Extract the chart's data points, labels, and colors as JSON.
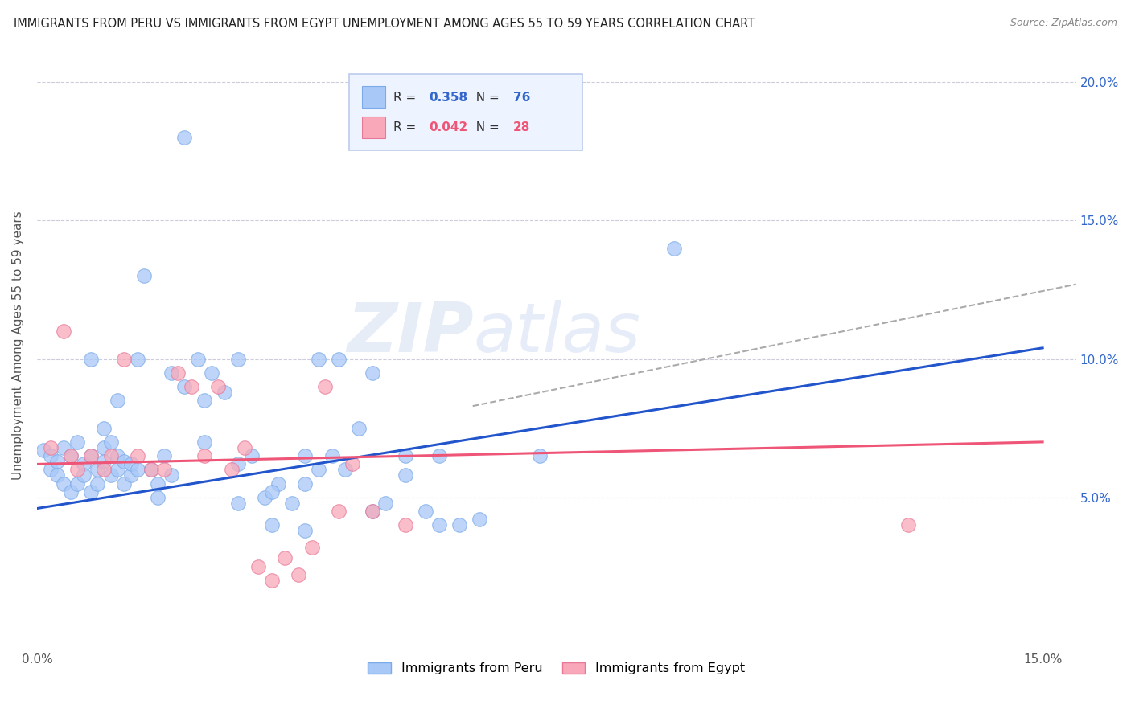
{
  "title": "IMMIGRANTS FROM PERU VS IMMIGRANTS FROM EGYPT UNEMPLOYMENT AMONG AGES 55 TO 59 YEARS CORRELATION CHART",
  "source": "Source: ZipAtlas.com",
  "ylabel": "Unemployment Among Ages 55 to 59 years",
  "peru_R": 0.358,
  "peru_N": 76,
  "egypt_R": 0.042,
  "egypt_N": 28,
  "peru_color": "#a8c8f8",
  "peru_edge_color": "#7aaae8",
  "egypt_color": "#f8a8b8",
  "egypt_edge_color": "#e87898",
  "peru_line_color": "#2255cc",
  "egypt_line_color": "#ee5577",
  "trend_line_color": "#aaaaaa",
  "background_color": "#ffffff",
  "grid_color": "#ccccdd",
  "xlim": [
    0.0,
    0.155
  ],
  "ylim": [
    -0.005,
    0.215
  ],
  "yticks": [
    0.05,
    0.1,
    0.15,
    0.2
  ],
  "ytick_labels": [
    "5.0%",
    "10.0%",
    "15.0%",
    "20.0%"
  ],
  "peru_trend_y_start": 0.046,
  "peru_trend_y_end": 0.104,
  "egypt_trend_y_start": 0.062,
  "egypt_trend_y_end": 0.07,
  "dashed_trend_x_start": 0.065,
  "dashed_trend_x_end": 0.155,
  "dashed_trend_y_start": 0.083,
  "dashed_trend_y_end": 0.127,
  "peru_x": [
    0.001,
    0.002,
    0.002,
    0.003,
    0.003,
    0.004,
    0.004,
    0.005,
    0.005,
    0.006,
    0.006,
    0.007,
    0.007,
    0.008,
    0.008,
    0.009,
    0.009,
    0.01,
    0.01,
    0.011,
    0.011,
    0.012,
    0.012,
    0.013,
    0.013,
    0.014,
    0.014,
    0.015,
    0.016,
    0.017,
    0.018,
    0.019,
    0.02,
    0.022,
    0.024,
    0.026,
    0.028,
    0.03,
    0.032,
    0.034,
    0.036,
    0.038,
    0.04,
    0.042,
    0.044,
    0.046,
    0.048,
    0.05,
    0.052,
    0.055,
    0.058,
    0.06,
    0.063,
    0.066,
    0.02,
    0.025,
    0.03,
    0.035,
    0.04,
    0.045,
    0.05,
    0.055,
    0.06,
    0.025,
    0.03,
    0.035,
    0.04,
    0.008,
    0.01,
    0.012,
    0.015,
    0.018,
    0.022,
    0.042,
    0.095,
    0.075
  ],
  "peru_y": [
    0.067,
    0.065,
    0.06,
    0.063,
    0.058,
    0.068,
    0.055,
    0.065,
    0.052,
    0.07,
    0.055,
    0.062,
    0.058,
    0.065,
    0.052,
    0.06,
    0.055,
    0.068,
    0.063,
    0.07,
    0.058,
    0.065,
    0.06,
    0.055,
    0.063,
    0.058,
    0.062,
    0.06,
    0.13,
    0.06,
    0.055,
    0.065,
    0.058,
    0.09,
    0.1,
    0.095,
    0.088,
    0.1,
    0.065,
    0.05,
    0.055,
    0.048,
    0.055,
    0.06,
    0.065,
    0.06,
    0.075,
    0.045,
    0.048,
    0.065,
    0.045,
    0.04,
    0.04,
    0.042,
    0.095,
    0.085,
    0.062,
    0.052,
    0.065,
    0.1,
    0.095,
    0.058,
    0.065,
    0.07,
    0.048,
    0.04,
    0.038,
    0.1,
    0.075,
    0.085,
    0.1,
    0.05,
    0.18,
    0.1,
    0.14,
    0.065
  ],
  "egypt_x": [
    0.002,
    0.004,
    0.005,
    0.006,
    0.008,
    0.01,
    0.011,
    0.013,
    0.015,
    0.017,
    0.019,
    0.021,
    0.023,
    0.025,
    0.027,
    0.029,
    0.031,
    0.033,
    0.035,
    0.037,
    0.039,
    0.041,
    0.043,
    0.045,
    0.047,
    0.05,
    0.055,
    0.13
  ],
  "egypt_y": [
    0.068,
    0.11,
    0.065,
    0.06,
    0.065,
    0.06,
    0.065,
    0.1,
    0.065,
    0.06,
    0.06,
    0.095,
    0.09,
    0.065,
    0.09,
    0.06,
    0.068,
    0.025,
    0.02,
    0.028,
    0.022,
    0.032,
    0.09,
    0.045,
    0.062,
    0.045,
    0.04,
    0.04
  ],
  "watermark_zip": "ZIP",
  "watermark_atlas": "atlas"
}
